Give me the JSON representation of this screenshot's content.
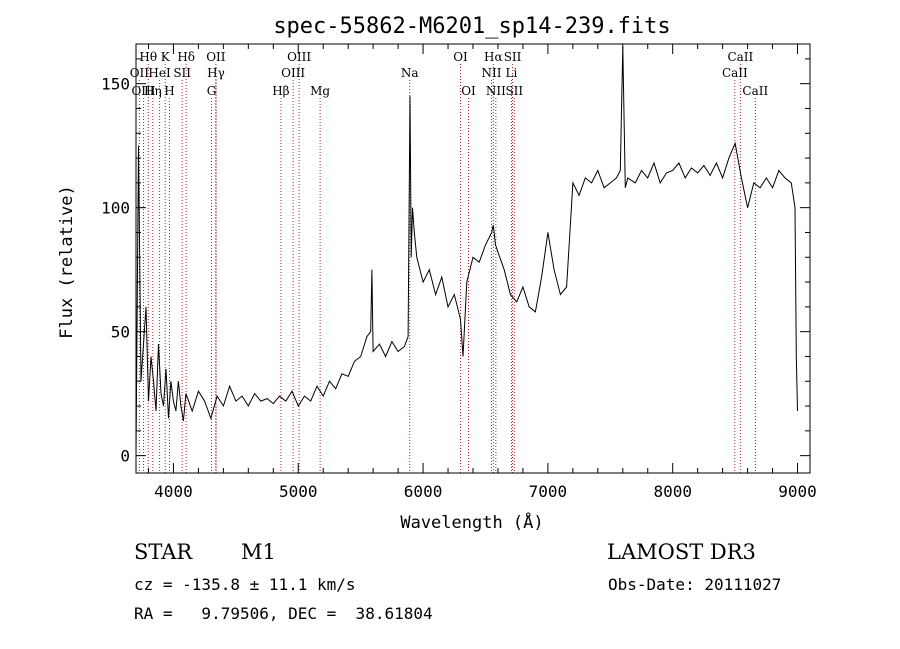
{
  "chart_data": {
    "type": "line",
    "title": "spec-55862-M6201_sp14-239.fits",
    "xlabel": "Wavelength (Å)",
    "ylabel": "Flux (relative)",
    "xlim": [
      3700,
      9100
    ],
    "ylim": [
      -7,
      166
    ],
    "x_ticks": [
      4000,
      5000,
      6000,
      7000,
      8000,
      9000
    ],
    "y_ticks": [
      0,
      50,
      100,
      150
    ],
    "series": [
      {
        "name": "flux",
        "x": [
          3700,
          3720,
          3740,
          3760,
          3780,
          3800,
          3820,
          3840,
          3860,
          3880,
          3900,
          3920,
          3940,
          3960,
          3980,
          4000,
          4020,
          4040,
          4060,
          4080,
          4100,
          4150,
          4200,
          4250,
          4300,
          4350,
          4400,
          4450,
          4500,
          4550,
          4600,
          4650,
          4700,
          4750,
          4800,
          4850,
          4900,
          4950,
          5000,
          5050,
          5100,
          5150,
          5200,
          5250,
          5300,
          5350,
          5400,
          5450,
          5500,
          5550,
          5580,
          5590,
          5600,
          5650,
          5700,
          5750,
          5800,
          5850,
          5880,
          5895,
          5905,
          5915,
          5930,
          5950,
          6000,
          6050,
          6100,
          6150,
          6200,
          6250,
          6300,
          6320,
          6350,
          6400,
          6450,
          6500,
          6550,
          6563,
          6580,
          6600,
          6650,
          6700,
          6750,
          6800,
          6850,
          6900,
          6950,
          7000,
          7050,
          7100,
          7150,
          7200,
          7250,
          7300,
          7350,
          7400,
          7450,
          7500,
          7550,
          7580,
          7600,
          7620,
          7640,
          7700,
          7750,
          7800,
          7850,
          7900,
          7950,
          8000,
          8050,
          8100,
          8150,
          8200,
          8250,
          8300,
          8350,
          8400,
          8450,
          8500,
          8550,
          8600,
          8650,
          8700,
          8750,
          8800,
          8850,
          8900,
          8950,
          8980,
          8990,
          9000
        ],
        "y": [
          0,
          125,
          30,
          45,
          60,
          22,
          40,
          30,
          18,
          45,
          25,
          20,
          35,
          15,
          30,
          22,
          18,
          30,
          20,
          14,
          25,
          18,
          26,
          22,
          15,
          24,
          20,
          28,
          22,
          24,
          20,
          25,
          22,
          23,
          21,
          24,
          22,
          26,
          20,
          24,
          22,
          28,
          24,
          30,
          27,
          33,
          32,
          38,
          40,
          48,
          50,
          75,
          42,
          45,
          40,
          46,
          42,
          44,
          48,
          145,
          80,
          100,
          90,
          80,
          70,
          75,
          65,
          72,
          60,
          65,
          55,
          40,
          70,
          80,
          78,
          85,
          90,
          93,
          85,
          82,
          75,
          65,
          62,
          68,
          60,
          58,
          72,
          90,
          75,
          65,
          68,
          110,
          105,
          112,
          110,
          115,
          108,
          110,
          112,
          115,
          165,
          108,
          112,
          110,
          115,
          112,
          118,
          110,
          114,
          115,
          118,
          112,
          116,
          114,
          117,
          113,
          118,
          112,
          120,
          126,
          112,
          100,
          110,
          108,
          112,
          108,
          115,
          112,
          110,
          100,
          40,
          18
        ]
      }
    ],
    "line_markers": {
      "top": [
        {
          "label": "Hθ",
          "x": 3798
        },
        {
          "label": "K",
          "x": 3934
        },
        {
          "label": "Hδ",
          "x": 4102
        },
        {
          "label": "OII",
          "x": 4340
        },
        {
          "label": "OIII",
          "x": 5007
        },
        {
          "label": "OI",
          "x": 6300
        },
        {
          "label": "Hα",
          "x": 6563
        },
        {
          "label": "SII",
          "x": 6717
        },
        {
          "label": "CaII",
          "x": 8542
        }
      ],
      "mid": [
        {
          "label": "OII",
          "x": 3727
        },
        {
          "label": "HeI",
          "x": 3889
        },
        {
          "label": "SII",
          "x": 4070
        },
        {
          "label": "Hγ",
          "x": 4341
        },
        {
          "label": "OIII",
          "x": 4959
        },
        {
          "label": "Na",
          "x": 5893
        },
        {
          "label": "NII",
          "x": 6548
        },
        {
          "label": "Li",
          "x": 6708
        },
        {
          "label": "CaII",
          "x": 8498
        }
      ],
      "low": [
        {
          "label": "OIII",
          "x": 3760
        },
        {
          "label": "Hη",
          "x": 3835
        },
        {
          "label": "H",
          "x": 3968
        },
        {
          "label": "G",
          "x": 4305
        },
        {
          "label": "Hβ",
          "x": 4861
        },
        {
          "label": "Mg",
          "x": 5175
        },
        {
          "label": "OI",
          "x": 6364
        },
        {
          "label": "NII",
          "x": 6583
        },
        {
          "label": "SII",
          "x": 6731
        },
        {
          "label": "CaII",
          "x": 8662
        }
      ]
    }
  },
  "info": {
    "object_class": "STAR",
    "subclass": "M1",
    "survey": "LAMOST DR3",
    "cz": "cz = -135.8 ± 11.1 km/s",
    "obs_date": "Obs-Date: 20111027",
    "coords": "RA =   9.79506, DEC =  38.61804"
  }
}
